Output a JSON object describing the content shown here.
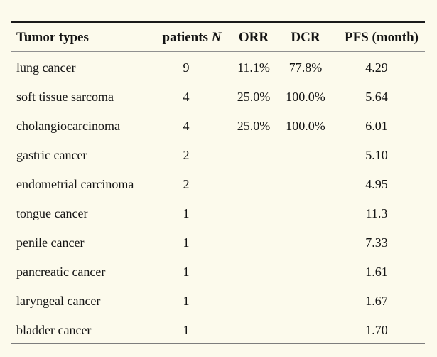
{
  "page": {
    "colors": {
      "background": "#fcfaec",
      "text": "#141414",
      "top_rule": "#1a1a1a",
      "header_rule": "#909090",
      "bottom_rule": "#7d7d7d"
    }
  },
  "chart_data": {
    "type": "table",
    "columns": [
      "Tumor types",
      "patients N",
      "ORR",
      "DCR",
      "PFS (month)"
    ],
    "header": {
      "tumor": "Tumor types",
      "patients_text": "patients",
      "patients_symbol": "N",
      "orr": "ORR",
      "dcr": "DCR",
      "pfs": "PFS (month)"
    },
    "rows": [
      {
        "tumor": "lung cancer",
        "patients": "9",
        "orr": "11.1%",
        "dcr": "77.8%",
        "pfs": "4.29"
      },
      {
        "tumor": "soft tissue sarcoma",
        "patients": "4",
        "orr": "25.0%",
        "dcr": "100.0%",
        "pfs": "5.64"
      },
      {
        "tumor": "cholangiocarcinoma",
        "patients": "4",
        "orr": "25.0%",
        "dcr": "100.0%",
        "pfs": "6.01"
      },
      {
        "tumor": "gastric cancer",
        "patients": "2",
        "orr": "",
        "dcr": "",
        "pfs": "5.10"
      },
      {
        "tumor": "endometrial carcinoma",
        "patients": "2",
        "orr": "",
        "dcr": "",
        "pfs": "4.95"
      },
      {
        "tumor": "tongue cancer",
        "patients": "1",
        "orr": "",
        "dcr": "",
        "pfs": "11.3"
      },
      {
        "tumor": "penile cancer",
        "patients": "1",
        "orr": "",
        "dcr": "",
        "pfs": "7.33"
      },
      {
        "tumor": "pancreatic cancer",
        "patients": "1",
        "orr": "",
        "dcr": "",
        "pfs": "1.61"
      },
      {
        "tumor": "laryngeal cancer",
        "patients": "1",
        "orr": "",
        "dcr": "",
        "pfs": "1.67"
      },
      {
        "tumor": "bladder cancer",
        "patients": "1",
        "orr": "",
        "dcr": "",
        "pfs": "1.70"
      }
    ]
  }
}
